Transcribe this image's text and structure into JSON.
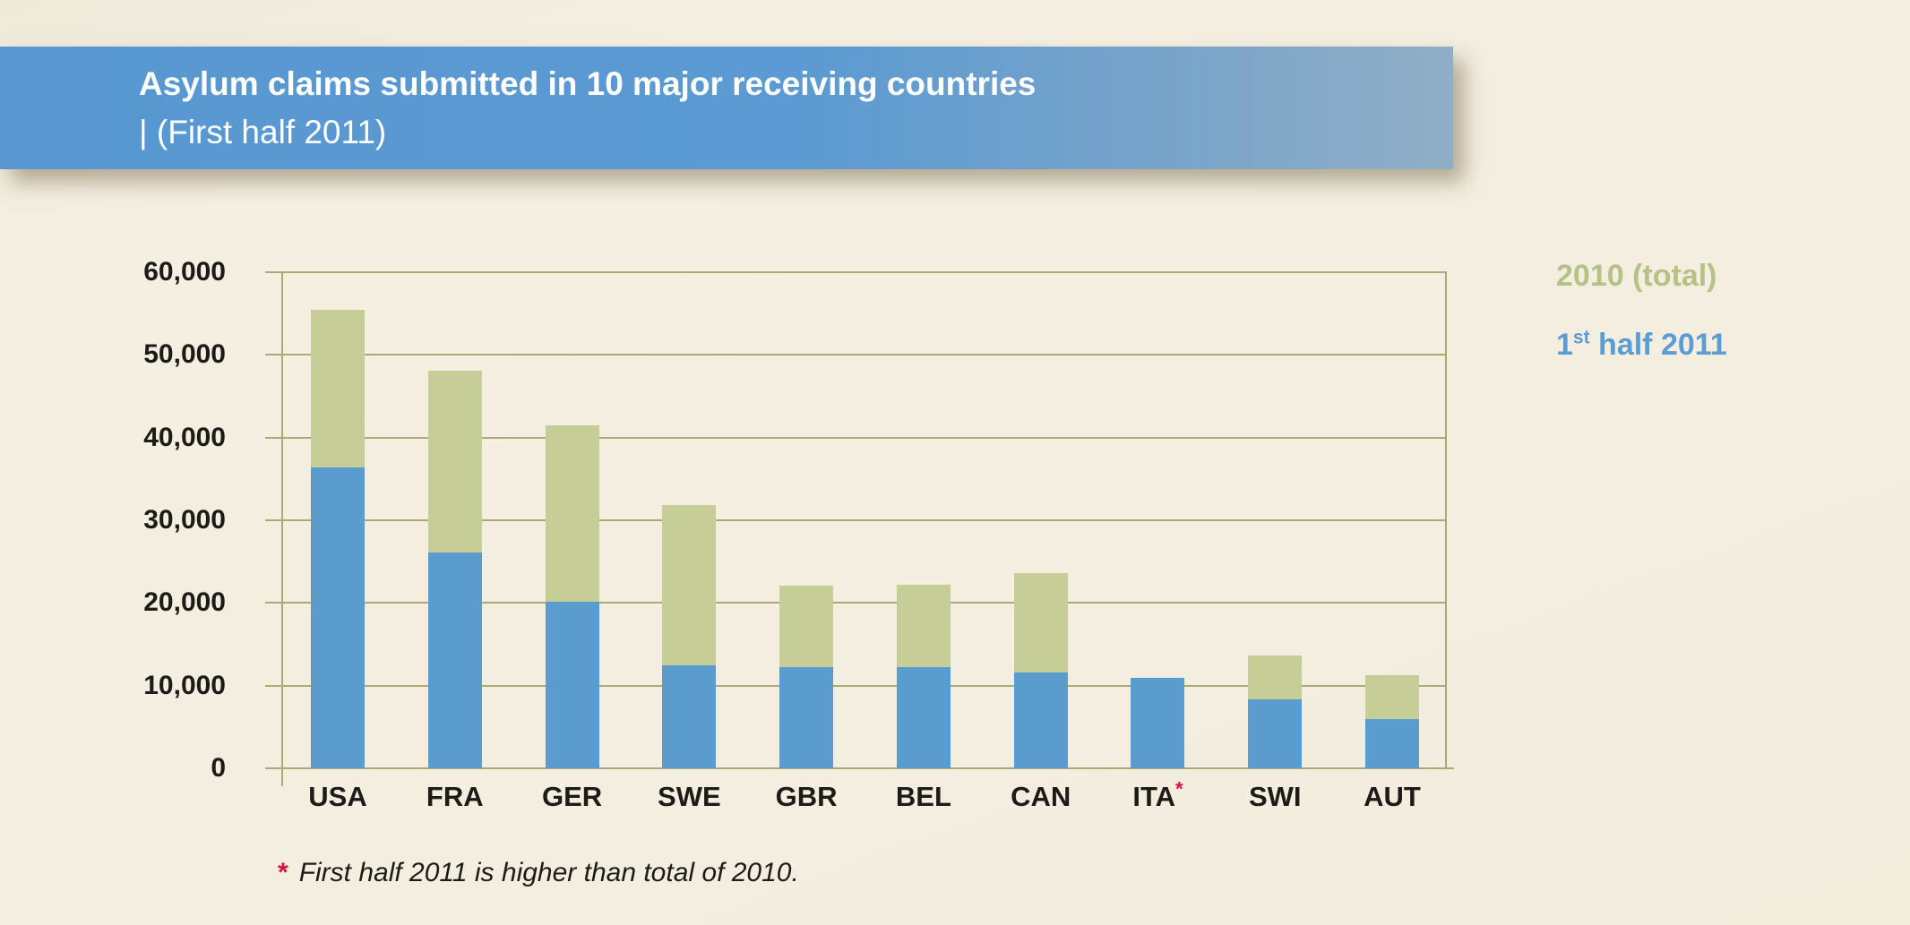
{
  "page": {
    "background": "#f3eee0"
  },
  "header": {
    "title_line1": "Asylum claims submitted in 10 major receiving countries",
    "title_line2": "| (First half 2011)",
    "band_color_left": "#5b9ad2",
    "band_color_right": "#90aec7",
    "text_color": "#ffffff"
  },
  "legend": {
    "items": [
      {
        "series": "2010_total",
        "label": "2010 (total)",
        "color": "#b5c286"
      },
      {
        "series": "first_half_2011",
        "label_prefix": "1",
        "label_sup": "st",
        "label_suffix": " half 2011",
        "color": "#5b9cd2"
      }
    ]
  },
  "chart_data": {
    "type": "bar",
    "stacked": true,
    "title": "Asylum claims submitted in 10 major receiving countries (First half 2011)",
    "categories": [
      "USA",
      "FRA",
      "GER",
      "SWE",
      "GBR",
      "BEL",
      "CAN",
      "ITA",
      "SWI",
      "AUT"
    ],
    "series": [
      {
        "name": "1st half 2011",
        "color": "#5a9cce",
        "values": [
          36400,
          26100,
          20100,
          12500,
          12200,
          12200,
          11600,
          10900,
          8300,
          6000
        ]
      },
      {
        "name": "2010 (total)",
        "color": "#c6cd96",
        "values": [
          55500,
          48100,
          41500,
          31800,
          22100,
          22200,
          23600,
          null,
          13600,
          11300
        ],
        "note": "drawn as green segment stacked above the 2011 value up to the 2010 total; ITA has no green segment"
      }
    ],
    "xlabel": "",
    "ylabel": "",
    "ylim": [
      0,
      60000
    ],
    "ytick_interval": 10000,
    "yticks": [
      "60,000",
      "50,000",
      "40,000",
      "30,000",
      "20,000",
      "10,000",
      "0"
    ],
    "grid": true,
    "gridline_color": "#a7ab74",
    "legend_position": "right",
    "annotations": [
      {
        "target": "ITA",
        "marker": "*",
        "color": "#d60f3f"
      }
    ]
  },
  "footnote": {
    "marker": "*",
    "marker_color": "#d60f3f",
    "text": "First half 2011 is higher than total of 2010."
  }
}
